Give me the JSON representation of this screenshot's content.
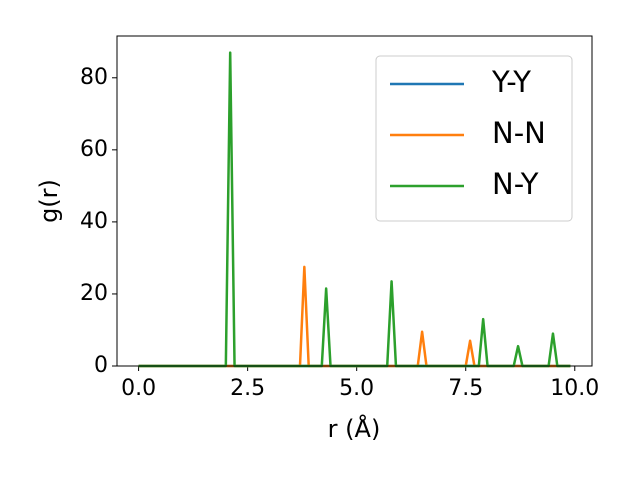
{
  "chart_data": {
    "type": "line",
    "xlabel": "r (Å)",
    "ylabel": "g(r)",
    "x": [
      0.0,
      0.1,
      0.2,
      0.3,
      0.4,
      0.5,
      0.6,
      0.7,
      0.8,
      0.9,
      1.0,
      1.1,
      1.2,
      1.3,
      1.4,
      1.5,
      1.6,
      1.7,
      1.8,
      1.9,
      2.0,
      2.1,
      2.2,
      2.3,
      2.4,
      2.5,
      2.6,
      2.7,
      2.8,
      2.9,
      3.0,
      3.1,
      3.2,
      3.3,
      3.4,
      3.5,
      3.6,
      3.7,
      3.8,
      3.9,
      4.0,
      4.1,
      4.2,
      4.3,
      4.4,
      4.5,
      4.6,
      4.7,
      4.8,
      4.9,
      5.0,
      5.1,
      5.2,
      5.3,
      5.4,
      5.5,
      5.6,
      5.7,
      5.8,
      5.9,
      6.0,
      6.1,
      6.2,
      6.3,
      6.4,
      6.5,
      6.6,
      6.7,
      6.8,
      6.9,
      7.0,
      7.1,
      7.2,
      7.3,
      7.4,
      7.5,
      7.6,
      7.7,
      7.8,
      7.9,
      8.0,
      8.1,
      8.2,
      8.3,
      8.4,
      8.5,
      8.6,
      8.7,
      8.8,
      8.9,
      9.0,
      9.1,
      9.2,
      9.3,
      9.4,
      9.5,
      9.6,
      9.7,
      9.8,
      9.9
    ],
    "series": [
      {
        "name": "Y-Y",
        "color": "#1f77b4",
        "values": [
          0,
          0,
          0,
          0,
          0,
          0,
          0,
          0,
          0,
          0,
          0,
          0,
          0,
          0,
          0,
          0,
          0,
          0,
          0,
          0,
          0,
          0,
          0,
          0,
          0,
          0,
          0,
          0,
          0,
          0,
          0,
          0,
          0,
          0,
          0,
          0,
          0,
          0,
          0,
          0,
          0,
          0,
          0,
          0,
          0,
          0,
          0,
          0,
          0,
          0,
          0,
          0,
          0,
          0,
          0,
          0,
          0,
          0,
          0,
          0,
          0,
          0,
          0,
          0,
          0,
          0,
          0,
          0,
          0,
          0,
          0,
          0,
          0,
          0,
          0,
          0,
          0,
          0,
          0,
          0,
          0,
          0,
          0,
          0,
          0,
          0,
          0,
          0,
          0,
          0,
          0,
          0,
          0,
          0,
          0,
          0,
          0,
          0,
          0,
          0
        ]
      },
      {
        "name": "N-N",
        "color": "#ff7f0e",
        "values": [
          0,
          0,
          0,
          0,
          0,
          0,
          0,
          0,
          0,
          0,
          0,
          0,
          0,
          0,
          0,
          0,
          0,
          0,
          0,
          0,
          0,
          0,
          0,
          0,
          0,
          0,
          0,
          0,
          0,
          0,
          0,
          0,
          0,
          0,
          0,
          0,
          0,
          0,
          27.5,
          0,
          0,
          0,
          0,
          0,
          0,
          0,
          0,
          0,
          0,
          0,
          0,
          0,
          0,
          0,
          0,
          0,
          0,
          0,
          0,
          0,
          0,
          0,
          0,
          0,
          0,
          9.5,
          0,
          0,
          0,
          0,
          0,
          0,
          0,
          0,
          0,
          0,
          7,
          0,
          0,
          0,
          0,
          0,
          0,
          0,
          0,
          0,
          0,
          0,
          0,
          0,
          0,
          0,
          0,
          0,
          0,
          0,
          0,
          0,
          0,
          0
        ]
      },
      {
        "name": "N-Y",
        "color": "#2ca02c",
        "values": [
          0,
          0,
          0,
          0,
          0,
          0,
          0,
          0,
          0,
          0,
          0,
          0,
          0,
          0,
          0,
          0,
          0,
          0,
          0,
          0,
          0,
          87,
          0,
          0,
          0,
          0,
          0,
          0,
          0,
          0,
          0,
          0,
          0,
          0,
          0,
          0,
          0,
          0,
          0,
          0,
          0,
          0,
          0,
          21.5,
          0,
          0,
          0,
          0,
          0,
          0,
          0,
          0,
          0,
          0,
          0,
          0,
          0,
          0,
          23.5,
          0,
          0,
          0,
          0,
          0,
          0,
          0,
          0,
          0,
          0,
          0,
          0,
          0,
          0,
          0,
          0,
          0,
          0,
          0,
          0,
          13,
          0,
          0,
          0,
          0,
          0,
          0,
          0,
          5.5,
          0,
          0,
          0,
          0,
          0,
          0,
          0,
          9,
          0,
          0,
          0,
          0
        ]
      }
    ],
    "xlim": [
      -0.495,
      10.395
    ],
    "xticks": [
      {
        "value": 0,
        "label": "0.0"
      },
      2.5,
      {
        "value": 5,
        "label": "5.0"
      },
      7.5,
      {
        "value": 10,
        "label": "10.0"
      }
    ],
    "ylim": [
      0,
      91.6
    ],
    "yticks": [
      0,
      20,
      40,
      60,
      80
    ],
    "legend": "upper right"
  }
}
